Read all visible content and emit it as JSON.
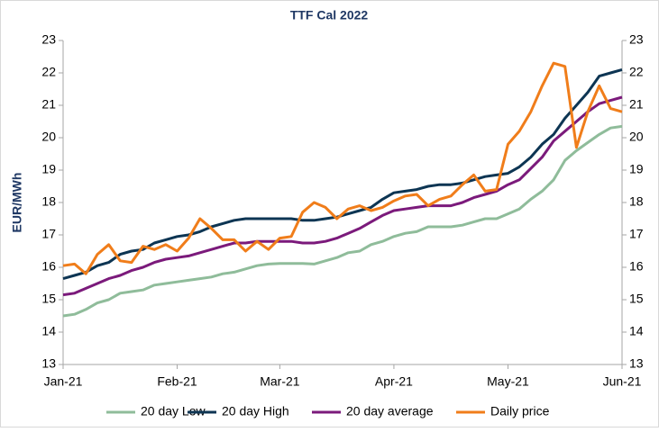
{
  "chart_data": {
    "type": "line",
    "title": "TTF Cal 2022",
    "y_label": "EUR/MWh",
    "categories": [
      "Jan-21",
      null,
      null,
      null,
      null,
      null,
      null,
      null,
      null,
      null,
      "Feb-21",
      null,
      null,
      null,
      null,
      null,
      null,
      null,
      null,
      "Mar-21",
      null,
      null,
      null,
      null,
      null,
      null,
      null,
      null,
      null,
      "Apr-21",
      null,
      null,
      null,
      null,
      null,
      null,
      null,
      null,
      null,
      "May-21",
      null,
      null,
      null,
      null,
      null,
      null,
      null,
      null,
      null,
      "Jun-21"
    ],
    "series": [
      {
        "name": "20 day Low",
        "color": "#8fbc9a",
        "values": [
          14.5,
          14.55,
          14.7,
          14.9,
          15.0,
          15.2,
          15.25,
          15.3,
          15.45,
          15.5,
          15.55,
          15.6,
          15.65,
          15.7,
          15.8,
          15.85,
          15.95,
          16.05,
          16.1,
          16.12,
          16.12,
          16.12,
          16.1,
          16.2,
          16.3,
          16.45,
          16.5,
          16.7,
          16.8,
          16.95,
          17.05,
          17.1,
          17.25,
          17.25,
          17.25,
          17.3,
          17.4,
          17.5,
          17.5,
          17.65,
          17.8,
          18.1,
          18.35,
          18.7,
          19.3,
          19.6,
          19.85,
          20.1,
          20.3,
          20.35
        ]
      },
      {
        "name": "20 day High",
        "color": "#0d3553",
        "values": [
          15.65,
          15.75,
          15.85,
          16.05,
          16.15,
          16.4,
          16.5,
          16.55,
          16.75,
          16.85,
          16.95,
          17.0,
          17.1,
          17.25,
          17.35,
          17.45,
          17.5,
          17.5,
          17.5,
          17.5,
          17.5,
          17.45,
          17.45,
          17.5,
          17.55,
          17.65,
          17.75,
          17.85,
          18.1,
          18.3,
          18.35,
          18.4,
          18.5,
          18.55,
          18.55,
          18.6,
          18.7,
          18.8,
          18.85,
          18.9,
          19.1,
          19.4,
          19.8,
          20.1,
          20.6,
          21.0,
          21.4,
          21.9,
          22.0,
          22.1
        ]
      },
      {
        "name": "20 day average",
        "color": "#7b1a7b",
        "values": [
          15.15,
          15.2,
          15.35,
          15.5,
          15.65,
          15.75,
          15.9,
          16.0,
          16.15,
          16.25,
          16.3,
          16.35,
          16.45,
          16.55,
          16.65,
          16.75,
          16.75,
          16.8,
          16.8,
          16.8,
          16.8,
          16.75,
          16.75,
          16.8,
          16.9,
          17.05,
          17.2,
          17.4,
          17.6,
          17.75,
          17.8,
          17.85,
          17.9,
          17.9,
          17.9,
          18.0,
          18.15,
          18.25,
          18.35,
          18.55,
          18.7,
          19.05,
          19.4,
          19.9,
          20.2,
          20.5,
          20.8,
          21.05,
          21.15,
          21.25
        ]
      },
      {
        "name": "Daily price",
        "color": "#f07d1a",
        "values": [
          16.05,
          16.1,
          15.8,
          16.4,
          16.7,
          16.2,
          16.15,
          16.65,
          16.55,
          16.7,
          16.5,
          16.9,
          17.5,
          17.2,
          16.85,
          16.85,
          16.5,
          16.8,
          16.55,
          16.9,
          16.95,
          17.7,
          18.0,
          17.85,
          17.5,
          17.8,
          17.9,
          17.75,
          17.85,
          18.05,
          18.2,
          18.25,
          17.9,
          18.1,
          18.2,
          18.55,
          18.85,
          18.35,
          18.4,
          19.8,
          20.2,
          20.8,
          21.6,
          22.3,
          22.2,
          19.7,
          20.8,
          21.6,
          20.9,
          20.8
        ]
      }
    ],
    "ylim": [
      13,
      23
    ],
    "yticks": [
      13,
      14,
      15,
      16,
      17,
      18,
      19,
      20,
      21,
      22,
      23
    ],
    "y2lim": [
      13,
      23
    ],
    "y2ticks": [
      13,
      14,
      15,
      16,
      17,
      18,
      19,
      20,
      21,
      22,
      23
    ],
    "legend": "bottom"
  }
}
